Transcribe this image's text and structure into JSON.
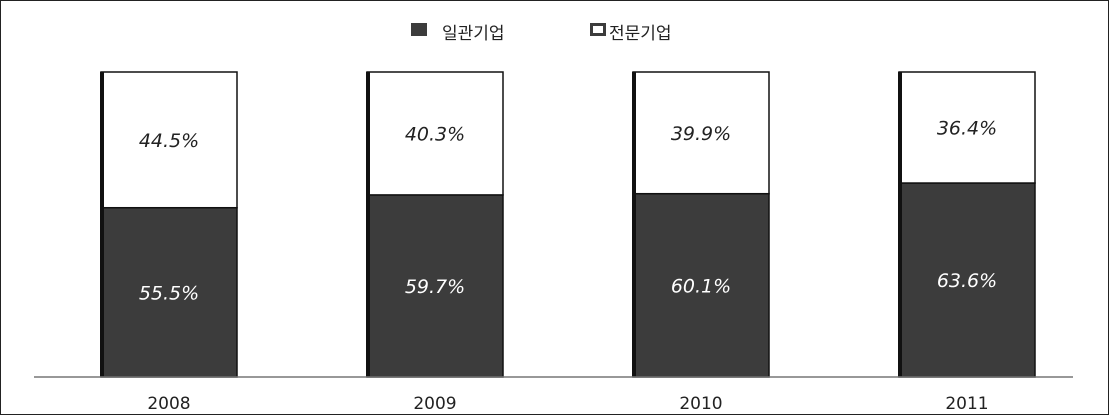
{
  "chart_data": {
    "type": "bar",
    "stacked": true,
    "categories": [
      "2008",
      "2009",
      "2010",
      "2011"
    ],
    "series": [
      {
        "name": "일관기업",
        "values": [
          55.5,
          59.7,
          60.1,
          63.6
        ],
        "labels": [
          "55.5%",
          "59.7%",
          "60.1%",
          "63.6%"
        ],
        "color": "#3c3c3c",
        "label_color": "#ffffff"
      },
      {
        "name": "전문기업",
        "values": [
          44.5,
          40.3,
          39.9,
          36.4
        ],
        "labels": [
          "44.5%",
          "40.3%",
          "39.9%",
          "36.4%"
        ],
        "color": "#ffffff",
        "label_color": "#222222"
      }
    ],
    "ylim": [
      0,
      100
    ],
    "grid": false,
    "legend_position": "top-center",
    "legend": [
      {
        "label": "일관기업",
        "marker": "filled-square"
      },
      {
        "label": "전문기업",
        "marker": "outlined-square"
      }
    ]
  }
}
